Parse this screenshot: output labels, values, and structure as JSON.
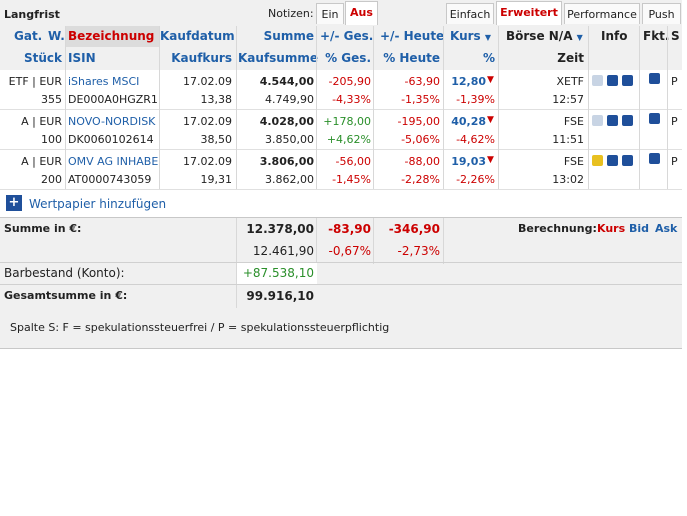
{
  "app": {
    "title": "Langfrist",
    "notizen_label": "Notizen:"
  },
  "tabs_left": [
    {
      "label": "Ein",
      "active": false
    },
    {
      "label": "Aus",
      "active": true
    }
  ],
  "tabs_right": [
    {
      "label": "Einfach",
      "active": false
    },
    {
      "label": "Erweitert",
      "active": true
    },
    {
      "label": "Performance",
      "active": false
    },
    {
      "label": "Push",
      "active": false
    }
  ],
  "header": {
    "gat": "Gat.",
    "w": "W.",
    "bezeichnung": "Bezeichnung",
    "kaufdatum": "Kaufdatum",
    "summe": "Summe",
    "ges": "+/- Ges.",
    "heute": "+/- Heute",
    "kurs": "Kurs",
    "boerse": "Börse N/A",
    "info": "Info",
    "fkt": "Fkt.",
    "s": "S",
    "stueck": "Stück",
    "isin": "ISIN",
    "kaufkurs": "Kaufkurs",
    "kaufsumme": "Kaufsumme",
    "pct_ges": "% Ges.",
    "pct_heute": "% Heute",
    "pct": "%",
    "zeit": "Zeit"
  },
  "rows": [
    {
      "gat": "ETF | EUR",
      "stueck": "355",
      "name": "iShares MSCI",
      "isin": "DE000A0HGZR1",
      "kaufdatum": "17.02.09",
      "kaufkurs": "13,38",
      "summe": "4.544,00",
      "kaufsumme": "4.749,90",
      "ges": "-205,90",
      "pct_ges": "-4,33%",
      "heute": "-63,90",
      "pct_heute": "-1,35%",
      "kurs": "12,80",
      "pct": "-1,39%",
      "boerse": "XETF",
      "zeit": "12:57",
      "s": "P",
      "ges_color": "neg",
      "pctges_color": "neg",
      "note_color": "#c8d4e4"
    },
    {
      "gat": "A | EUR",
      "stueck": "100",
      "name": "NOVO-NORDISK",
      "isin": "DK0060102614",
      "kaufdatum": "17.02.09",
      "kaufkurs": "38,50",
      "summe": "4.028,00",
      "kaufsumme": "3.850,00",
      "ges": "+178,00",
      "pct_ges": "+4,62%",
      "heute": "-195,00",
      "pct_heute": "-5,06%",
      "kurs": "40,28",
      "pct": "-4,62%",
      "boerse": "FSE",
      "zeit": "11:51",
      "s": "P",
      "ges_color": "pos",
      "pctges_color": "pos",
      "note_color": "#c8d4e4"
    },
    {
      "gat": "A | EUR",
      "stueck": "200",
      "name": "OMV AG INHABE",
      "isin": "AT0000743059",
      "kaufdatum": "17.02.09",
      "kaufkurs": "19,31",
      "summe": "3.806,00",
      "kaufsumme": "3.862,00",
      "ges": "-56,00",
      "pct_ges": "-1,45%",
      "heute": "-88,00",
      "pct_heute": "-2,28%",
      "kurs": "19,03",
      "pct": "-2,26%",
      "boerse": "FSE",
      "zeit": "13:02",
      "s": "P",
      "ges_color": "neg",
      "pctges_color": "neg",
      "note_color": "#e8c020"
    }
  ],
  "add": {
    "label": "Wertpapier hinzufügen"
  },
  "summary": {
    "summe_label": "Summe in €:",
    "summe": "12.378,00",
    "ges": "-83,90",
    "heute": "-346,90",
    "kaufsumme": "12.461,90",
    "pct_ges": "-0,67%",
    "pct_heute": "-2,73%",
    "berechnung_label": "Berechnung:",
    "kurs": "Kurs",
    "bid": "Bid",
    "ask": "Ask",
    "barbestand_label": "Barbestand (Konto):",
    "barbestand": "+87.538,10",
    "gesamt_label": "Gesamtsumme in €:",
    "gesamt": "99.916,10"
  },
  "footer": {
    "note": "Spalte S: F = spekulationssteuerfrei / P = spekulationssteuerpflichtig"
  },
  "colors": {
    "accent_red": "#cc0000",
    "link_blue": "#1f5fa8",
    "positive_green": "#2a8f2a"
  }
}
